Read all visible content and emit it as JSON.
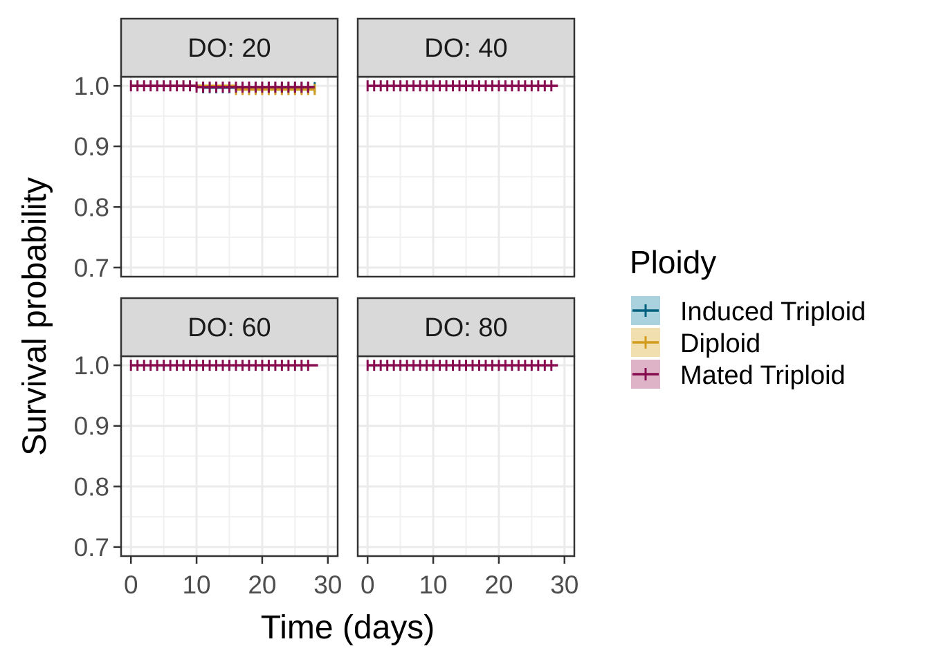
{
  "chart_data": {
    "type": "line",
    "subtype": "kaplan-meier step survival curves with censor marks, faceted",
    "xlabel": "Time (days)",
    "ylabel": "Survival probability",
    "xlim": [
      -1.5,
      31.5
    ],
    "ylim": [
      0.685,
      1.015
    ],
    "x_ticks": [
      0,
      10,
      20,
      30
    ],
    "x_tick_labels": [
      "0",
      "10",
      "20",
      "30"
    ],
    "y_ticks": [
      0.7,
      0.8,
      0.9,
      1.0
    ],
    "y_tick_labels": [
      "0.7",
      "0.8",
      "0.9",
      "1.0"
    ],
    "grid": true,
    "legend": {
      "title": "Ploidy",
      "position": "right",
      "entries": [
        {
          "name": "Induced Triploid",
          "line_color": "#00607f",
          "fill_color": "#a9d1de"
        },
        {
          "name": "Diploid",
          "line_color": "#d39c1c",
          "fill_color": "#f1dfb0"
        },
        {
          "name": "Mated Triploid",
          "line_color": "#870c4f",
          "fill_color": "#deb3c8"
        }
      ]
    },
    "panels": [
      {
        "label": "DO: 20",
        "series": [
          {
            "name": "Induced Triploid",
            "steps": [
              [
                0,
                1.0
              ],
              [
                11,
                0.997
              ],
              [
                28,
                0.997
              ]
            ],
            "censor_times": [
              11,
              12,
              13,
              14,
              15,
              16,
              17,
              18,
              19,
              20,
              21,
              22,
              23,
              24,
              25,
              26,
              27,
              28
            ]
          },
          {
            "name": "Diploid",
            "steps": [
              [
                0,
                1.0
              ],
              [
                16,
                0.994
              ],
              [
                28,
                0.994
              ]
            ],
            "censor_times": [
              16,
              17,
              18,
              19,
              20,
              21,
              22,
              23,
              24,
              25,
              26,
              27,
              28
            ]
          },
          {
            "name": "Mated Triploid",
            "steps": [
              [
                0,
                1.0
              ],
              [
                10,
                0.998
              ],
              [
                28,
                0.998
              ]
            ],
            "censor_times": [
              0,
              1,
              2,
              3,
              4,
              5,
              6,
              7,
              8,
              9,
              10,
              11,
              12,
              13,
              14,
              15,
              16,
              17,
              18,
              19,
              20,
              21,
              22,
              23,
              24,
              25,
              26,
              27
            ]
          }
        ]
      },
      {
        "label": "DO: 40",
        "series": [
          {
            "name": "Mated Triploid",
            "steps": [
              [
                0,
                1.0
              ],
              [
                29,
                1.0
              ]
            ],
            "censor_times": [
              0,
              1,
              2,
              3,
              4,
              5,
              6,
              7,
              8,
              9,
              10,
              11,
              12,
              13,
              14,
              15,
              16,
              17,
              18,
              19,
              20,
              21,
              22,
              23,
              24,
              25,
              26,
              27,
              28
            ]
          }
        ]
      },
      {
        "label": "DO: 60",
        "series": [
          {
            "name": "Mated Triploid",
            "steps": [
              [
                0,
                1.0
              ],
              [
                28.5,
                1.0
              ]
            ],
            "censor_times": [
              0,
              1,
              2,
              3,
              4,
              5,
              6,
              7,
              8,
              9,
              10,
              11,
              12,
              13,
              14,
              15,
              16,
              17,
              18,
              19,
              20,
              21,
              22,
              23,
              24,
              25,
              26,
              27
            ]
          }
        ]
      },
      {
        "label": "DO: 80",
        "series": [
          {
            "name": "Mated Triploid",
            "steps": [
              [
                0,
                1.0
              ],
              [
                29,
                1.0
              ]
            ],
            "censor_times": [
              0,
              1,
              2,
              3,
              4,
              5,
              6,
              7,
              8,
              9,
              10,
              11,
              12,
              13,
              14,
              15,
              16,
              17,
              18,
              19,
              20,
              21,
              22,
              23,
              24,
              25,
              26,
              27,
              28
            ]
          }
        ]
      }
    ]
  }
}
